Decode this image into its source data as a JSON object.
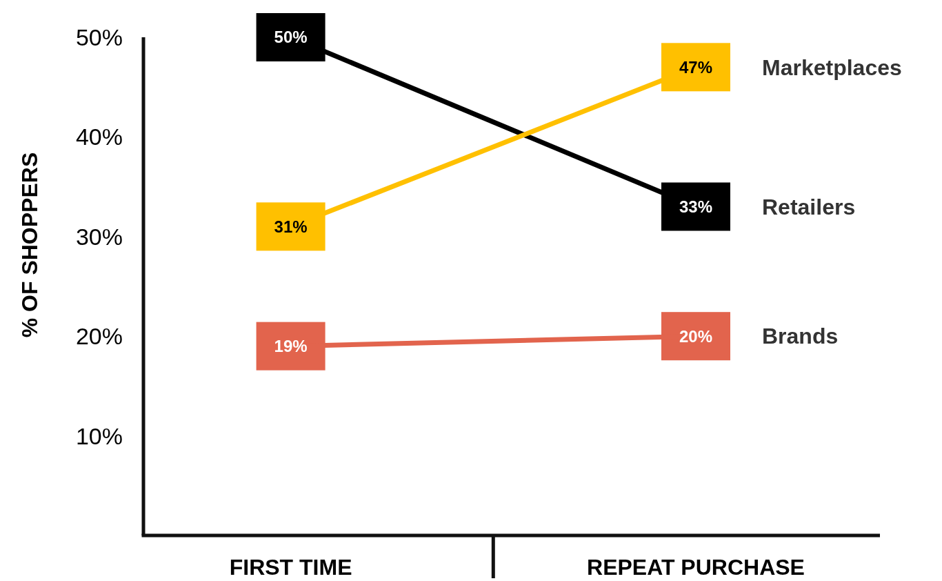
{
  "chart_data": {
    "type": "line",
    "ylabel": "% OF SHOPPERS",
    "categories": [
      "FIRST TIME",
      "REPEAT PURCHASE"
    ],
    "series": [
      {
        "name": "Retailers",
        "color": "#000000",
        "values": [
          50,
          33
        ],
        "value_labels": [
          "50%",
          "33%"
        ]
      },
      {
        "name": "Marketplaces",
        "color": "#ffc000",
        "values": [
          31,
          47
        ],
        "value_labels": [
          "31%",
          "47%"
        ]
      },
      {
        "name": "Brands",
        "color": "#e2644d",
        "values": [
          19,
          20
        ],
        "value_labels": [
          "19%",
          "20%"
        ]
      }
    ],
    "ylim": [
      0,
      50
    ],
    "yticks": [
      {
        "value": 10,
        "label": "10%"
      },
      {
        "value": 20,
        "label": "20%"
      },
      {
        "value": 30,
        "label": "30%"
      },
      {
        "value": 40,
        "label": "40%"
      },
      {
        "value": 50,
        "label": "50%"
      }
    ],
    "legend": "right"
  }
}
